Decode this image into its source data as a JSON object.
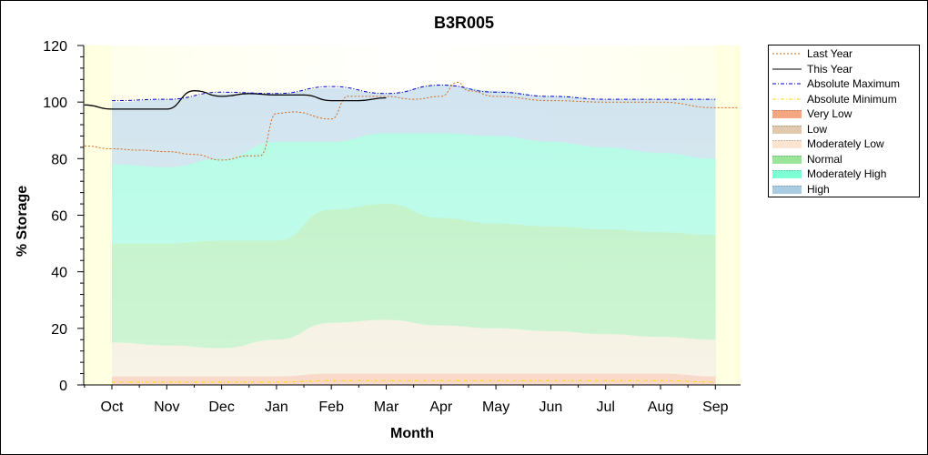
{
  "chart_data": {
    "type": "area",
    "title": "B3R005",
    "xlabel": "Month",
    "ylabel": "% Storage",
    "ylim": [
      0,
      120
    ],
    "yticks": [
      0,
      20,
      40,
      60,
      80,
      100,
      120
    ],
    "grid": false,
    "legend_position": "right",
    "categories": [
      "Oct",
      "Nov",
      "Dec",
      "Jan",
      "Feb",
      "Mar",
      "Apr",
      "May",
      "Jun",
      "Jul",
      "Aug",
      "Sep"
    ],
    "bands": [
      {
        "name": "Very Low",
        "upper": [
          3,
          3,
          3,
          3,
          4,
          4,
          4,
          4,
          4,
          4,
          4,
          3
        ],
        "color": "#f4a582"
      },
      {
        "name": "Low",
        "upper": [
          3,
          3,
          3,
          3,
          4,
          4,
          4,
          4,
          4,
          4,
          4,
          3
        ],
        "color": "#e0c9ad"
      },
      {
        "name": "Moderately Low",
        "upper": [
          15,
          14,
          13,
          16,
          22,
          23,
          21,
          20,
          19,
          18,
          17,
          16
        ],
        "color": "#fde4d0"
      },
      {
        "name": "Normal",
        "upper": [
          50,
          50,
          51,
          51,
          62,
          64,
          59,
          57,
          56,
          55,
          54,
          53
        ],
        "color": "#99e699"
      },
      {
        "name": "Moderately High",
        "upper": [
          78,
          77,
          80,
          86,
          86,
          89,
          89,
          88,
          86,
          84,
          82,
          80
        ],
        "color": "#7fffd4"
      },
      {
        "name": "High",
        "upper": [
          100,
          101,
          103,
          103,
          105,
          103,
          106,
          104,
          102,
          101,
          101,
          101
        ],
        "color": "#a9cce3"
      }
    ],
    "series": [
      {
        "name": "Last Year",
        "x": [
          -0.5,
          0,
          0.5,
          1,
          1.5,
          2,
          2.5,
          2.7,
          3,
          3.3,
          4,
          4.3,
          5,
          5.5,
          6,
          6.3,
          6.5,
          7,
          8,
          9,
          10,
          11,
          11.4
        ],
        "y": [
          84.5,
          83.5,
          83,
          82.5,
          81.5,
          79.5,
          81,
          81,
          96,
          96.5,
          94,
          102,
          102,
          101,
          102,
          107,
          104,
          102,
          100.5,
          100,
          100,
          98,
          98
        ],
        "color": "#d2691e",
        "style": "dotted"
      },
      {
        "name": "This Year",
        "x": [
          -0.5,
          0,
          0.5,
          1,
          1.5,
          2,
          2.5,
          3,
          3.5,
          4,
          4.5,
          5
        ],
        "y": [
          99,
          97.5,
          97.5,
          97.5,
          104,
          102,
          103,
          102.5,
          102.5,
          100.5,
          100.5,
          101.5
        ],
        "color": "#000000",
        "style": "solid"
      },
      {
        "name": "Absolute Maximum",
        "x": [
          0,
          1,
          2,
          3,
          4,
          5,
          6,
          7,
          8,
          9,
          10,
          11
        ],
        "y": [
          100.5,
          101,
          103.5,
          103,
          105.5,
          103,
          106,
          103.5,
          102,
          101,
          101,
          101
        ],
        "color": "#0000cd",
        "style": "dash-dot"
      },
      {
        "name": "Absolute Minimum",
        "x": [
          0,
          1,
          2,
          3,
          4,
          5,
          6,
          7,
          8,
          9,
          10,
          11
        ],
        "y": [
          1,
          1,
          1,
          1,
          1.5,
          1.5,
          1.5,
          1.5,
          1.5,
          1.5,
          1.5,
          1
        ],
        "color": "#ffd700",
        "style": "dash-dot"
      }
    ],
    "legend": [
      {
        "label": "Last Year",
        "kind": "line",
        "color": "#d2691e",
        "style": "dotted"
      },
      {
        "label": "This Year",
        "kind": "line",
        "color": "#000000",
        "style": "solid"
      },
      {
        "label": "Absolute Maximum",
        "kind": "line",
        "color": "#0000cd",
        "style": "dash-dot"
      },
      {
        "label": "Absolute Minimum",
        "kind": "line",
        "color": "#ffd700",
        "style": "dash-dot"
      },
      {
        "label": "Very Low",
        "kind": "fill",
        "color": "#f4a582"
      },
      {
        "label": "Low",
        "kind": "fill",
        "color": "#e0c9ad"
      },
      {
        "label": "Moderately Low",
        "kind": "fill",
        "color": "#fde4d0"
      },
      {
        "label": "Normal",
        "kind": "fill",
        "color": "#99e699"
      },
      {
        "label": "Moderately High",
        "kind": "fill",
        "color": "#7fffd4"
      },
      {
        "label": "High",
        "kind": "fill",
        "color": "#a9cce3"
      }
    ]
  }
}
